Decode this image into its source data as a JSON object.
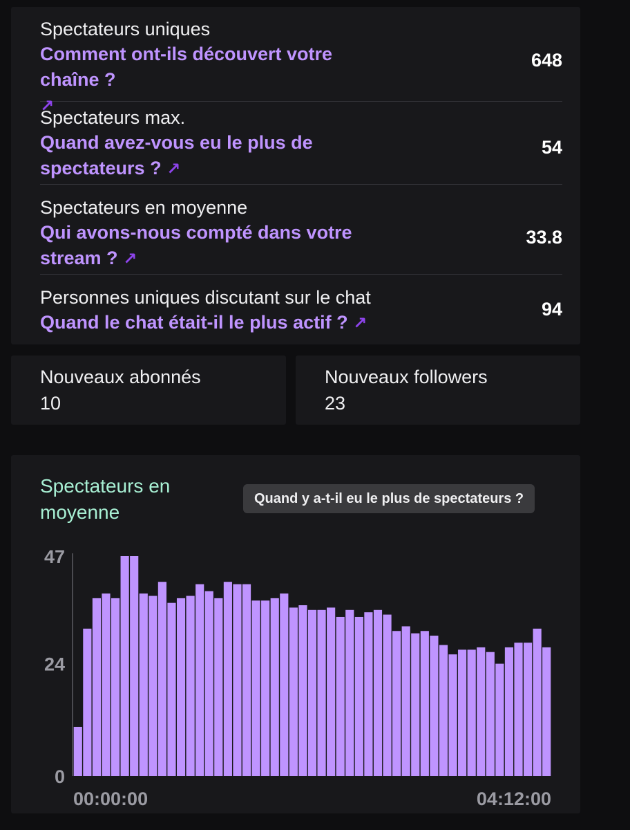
{
  "stats": [
    {
      "title": "Spectateurs uniques",
      "link": "Comment ont-ils découvert votre chaîne ?",
      "value": "648"
    },
    {
      "title": "Spectateurs max.",
      "link": "Quand avez-vous eu le plus de spectateurs ?",
      "value": "54"
    },
    {
      "title": "Spectateurs en moyenne",
      "link": "Qui avons-nous compté dans votre stream ?",
      "value": "33.8"
    },
    {
      "title": "Personnes uniques discutant sur le chat",
      "link": "Quand le chat était-il le plus actif ?",
      "value": "94"
    }
  ],
  "link_arrow": "↗",
  "subs": {
    "label": "Nouveaux abonnés",
    "value": "10"
  },
  "followers": {
    "label": "Nouveaux followers",
    "value": "23"
  },
  "chart": {
    "title": "Spectateurs en moyenne",
    "tooltip": "Quand y a-t-il eu le plus de spectateurs ?"
  },
  "colors": {
    "accent": "#bf94ff",
    "chart_title": "#a8f0d4",
    "card": "#18181b",
    "background": "#0e0e10"
  },
  "chart_data": {
    "type": "bar",
    "title": "Spectateurs en moyenne",
    "y_ticks": [
      "47",
      "24",
      "0"
    ],
    "x_tick_labels": [
      "00:00:00",
      "04:12:00"
    ],
    "ylim": [
      0,
      47
    ],
    "grid": false,
    "values": [
      10.5,
      31.5,
      38,
      39,
      38,
      47,
      47,
      39,
      38.5,
      41.5,
      37,
      38,
      38.5,
      41,
      39.5,
      38,
      41.5,
      41,
      41,
      37.5,
      37.5,
      38,
      39,
      36,
      36.5,
      35.5,
      35.5,
      36,
      34,
      35.5,
      34,
      35,
      35.5,
      34.5,
      31,
      32,
      30.5,
      31,
      30,
      28,
      26,
      27,
      27,
      27.5,
      26.5,
      24,
      27.5,
      28.5,
      28.5,
      31.5,
      27.5
    ]
  }
}
